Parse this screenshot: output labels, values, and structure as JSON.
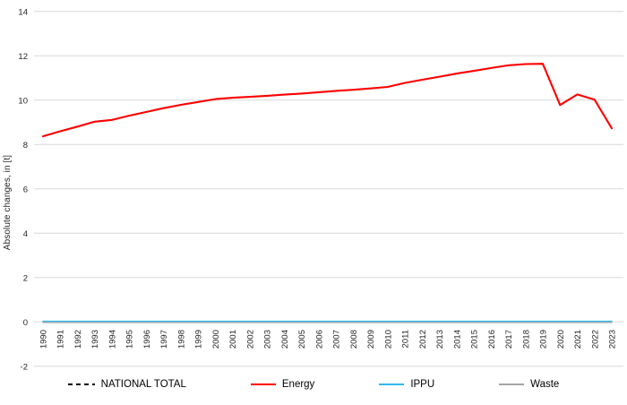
{
  "chart_data": {
    "type": "line",
    "title": "",
    "xlabel": "",
    "ylabel": "Absolute changes, in [t]",
    "ylim": [
      -2,
      14
    ],
    "ytick_step": 2,
    "grid": "horizontal",
    "gridline_color": "#D9D9D9",
    "tick_label_color": "#262626",
    "legend_position": "bottom",
    "x": [
      1990,
      1991,
      1992,
      1993,
      1994,
      1995,
      1996,
      1997,
      1998,
      1999,
      2000,
      2001,
      2002,
      2003,
      2004,
      2005,
      2006,
      2007,
      2008,
      2009,
      2010,
      2011,
      2012,
      2013,
      2014,
      2015,
      2016,
      2017,
      2018,
      2019,
      2020,
      2021,
      2022,
      2023
    ],
    "series": [
      {
        "name": "NATIONAL TOTAL",
        "color": "#000000",
        "dash": "4 3",
        "hidden_behind_energy": true,
        "values": [
          8.37,
          8.6,
          8.81,
          9.03,
          9.11,
          9.3,
          9.47,
          9.64,
          9.79,
          9.92,
          10.05,
          10.11,
          10.15,
          10.2,
          10.25,
          10.3,
          10.36,
          10.42,
          10.47,
          10.53,
          10.6,
          10.78,
          10.92,
          11.06,
          11.2,
          11.32,
          11.45,
          11.57,
          11.63,
          11.64,
          9.78,
          10.26,
          10.02,
          8.73
        ]
      },
      {
        "name": "Energy",
        "color": "#FF0000",
        "dash": "none",
        "values": [
          8.37,
          8.6,
          8.81,
          9.03,
          9.11,
          9.3,
          9.47,
          9.64,
          9.79,
          9.92,
          10.05,
          10.11,
          10.15,
          10.2,
          10.25,
          10.3,
          10.36,
          10.42,
          10.47,
          10.53,
          10.6,
          10.78,
          10.92,
          11.06,
          11.2,
          11.32,
          11.45,
          11.57,
          11.63,
          11.64,
          9.78,
          10.26,
          10.02,
          8.73
        ]
      },
      {
        "name": "IPPU",
        "color": "#2FB9F1",
        "dash": "none",
        "values": [
          0,
          0,
          0,
          0,
          0,
          0,
          0,
          0,
          0,
          0,
          0,
          0,
          0,
          0,
          0,
          0,
          0,
          0,
          0,
          0,
          0,
          0,
          0,
          0,
          0,
          0,
          0,
          0,
          0,
          0,
          0,
          0,
          0,
          0
        ]
      },
      {
        "name": "Waste",
        "color": "#A6A6A6",
        "dash": "none",
        "values": [
          0,
          0,
          0,
          0,
          0,
          0,
          0,
          0,
          0,
          0,
          0,
          0,
          0,
          0,
          0,
          0,
          0,
          0,
          0,
          0,
          0,
          0,
          0,
          0,
          0,
          0,
          0,
          0,
          0,
          0,
          0,
          0,
          0,
          0
        ]
      }
    ]
  }
}
